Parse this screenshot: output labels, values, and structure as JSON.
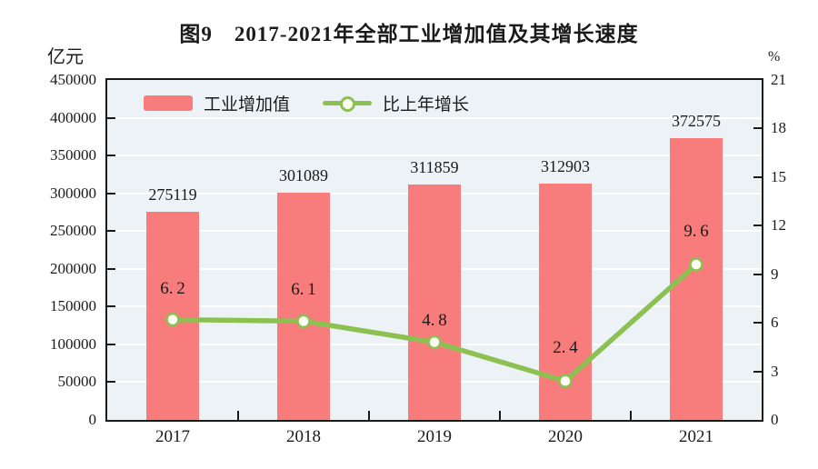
{
  "title": "图9　2017-2021年全部工业增加值及其增长速度",
  "left_axis_unit": "亿元",
  "right_axis_unit": "%",
  "legend": {
    "bar_label": "工业增加值",
    "line_label": "比上年增长"
  },
  "colors": {
    "bar": "#f87c7c",
    "line": "#8cc152",
    "marker_fill": "#fffef6",
    "plot_bg": "#edf2f7",
    "grid": "#ffffff",
    "axis": "#1a1a1a",
    "text": "#1a1a1a"
  },
  "chart_data": {
    "type": "bar",
    "subtype": "combo-bar-line-dual-axis",
    "title": "图9　2017-2021年全部工业增加值及其增长速度",
    "categories": [
      "2017",
      "2018",
      "2019",
      "2020",
      "2021"
    ],
    "series": [
      {
        "name": "工业增加值",
        "type": "bar",
        "axis": "left",
        "unit": "亿元",
        "values": [
          275119,
          301089,
          311859,
          312903,
          372575
        ]
      },
      {
        "name": "比上年增长",
        "type": "line",
        "axis": "right",
        "unit": "%",
        "values": [
          6.2,
          6.1,
          4.8,
          2.4,
          9.6
        ]
      }
    ],
    "left_axis": {
      "label": "亿元",
      "min": 0,
      "max": 450000,
      "step": 50000,
      "ticks": [
        450000,
        400000,
        350000,
        300000,
        250000,
        200000,
        150000,
        100000,
        50000,
        0
      ]
    },
    "right_axis": {
      "label": "%",
      "min": 0,
      "max": 21,
      "step": 3,
      "ticks": [
        21,
        18,
        15,
        12,
        9,
        6,
        3,
        0
      ]
    },
    "grid": true,
    "legend_position": "top-inside"
  }
}
